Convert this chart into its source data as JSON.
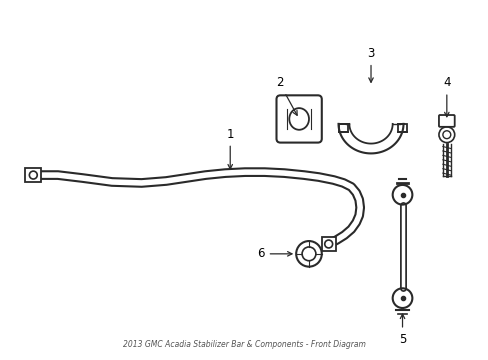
{
  "title": "2013 GMC Acadia Stabilizer Bar & Components - Front Diagram",
  "background_color": "#ffffff",
  "line_color": "#2a2a2a",
  "label_color": "#000000",
  "fig_width": 4.89,
  "fig_height": 3.6,
  "dpi": 100
}
